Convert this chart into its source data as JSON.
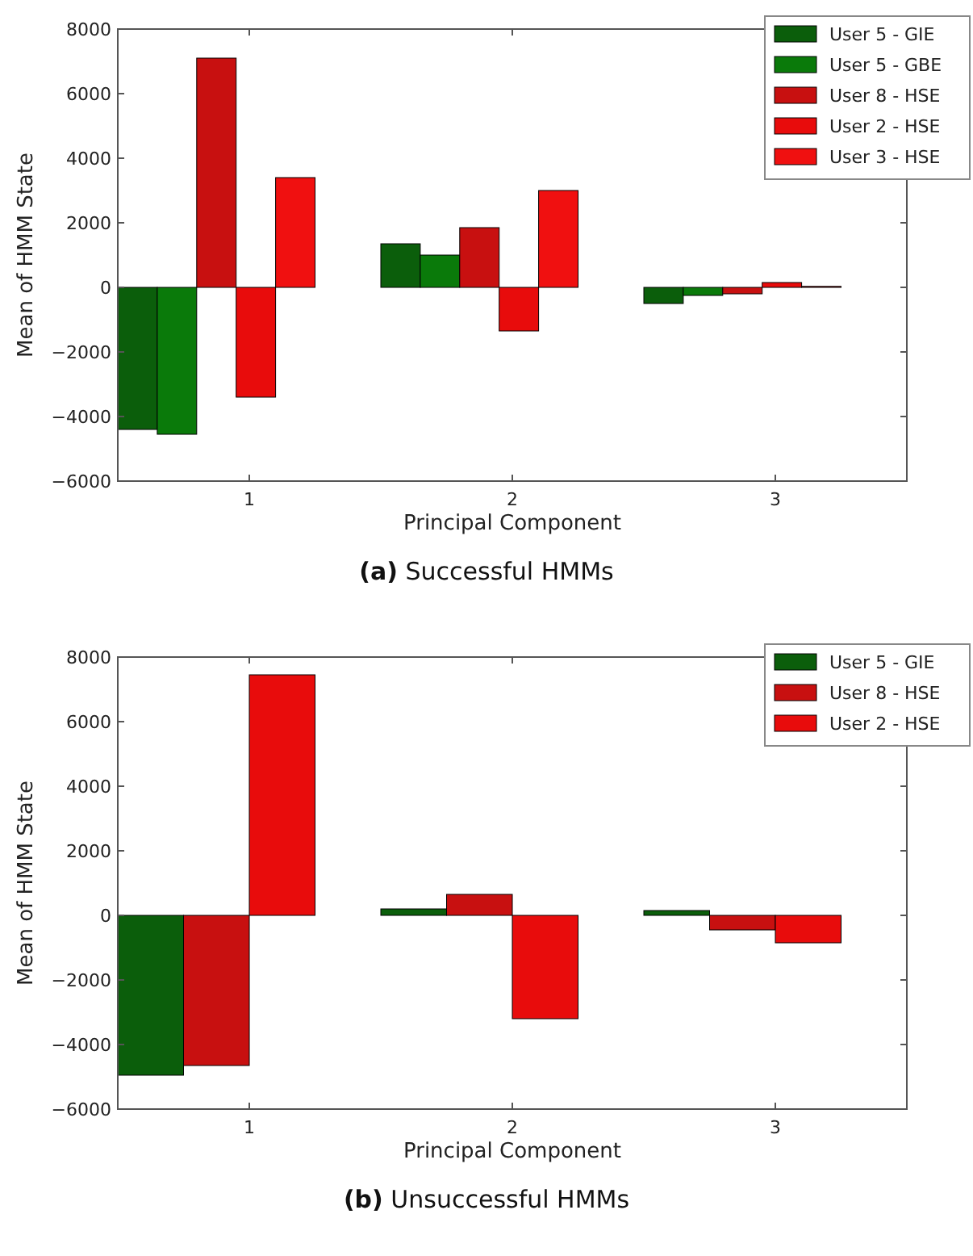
{
  "chart_data": [
    {
      "type": "bar",
      "title": "(a) Successful HMMs",
      "xlabel": "Principal Component",
      "ylabel": "Mean of HMM State",
      "categories": [
        "1",
        "2",
        "3"
      ],
      "ylim": [
        -6000,
        8000
      ],
      "yticks": [
        {
          "value": -6000,
          "label": "−6000"
        },
        {
          "value": -4000,
          "label": "−4000"
        },
        {
          "value": -2000,
          "label": "−2000"
        },
        0,
        2000,
        4000,
        6000,
        8000
      ],
      "grid": false,
      "legend": "top right",
      "series": [
        {
          "name": "User 5 - GIE",
          "color": "#0b5e0b",
          "values": [
            -4400,
            1350,
            -500
          ]
        },
        {
          "name": "User 5 - GBE",
          "color": "#0a7a0a",
          "values": [
            -4550,
            1000,
            -250
          ]
        },
        {
          "name": "User 8 - HSE",
          "color": "#c81010",
          "values": [
            7100,
            1850,
            -200
          ]
        },
        {
          "name": "User 2 - HSE",
          "color": "#e80c0c",
          "values": [
            -3400,
            -1350,
            150
          ]
        },
        {
          "name": "User 3 - HSE",
          "color": "#f01010",
          "values": [
            3400,
            3000,
            30
          ]
        }
      ]
    },
    {
      "type": "bar",
      "title": "(b) Unsuccessful HMMs",
      "xlabel": "Principal Component",
      "ylabel": "Mean of HMM State",
      "categories": [
        "1",
        "2",
        "3"
      ],
      "ylim": [
        -6000,
        8000
      ],
      "yticks": [
        {
          "value": -6000,
          "label": "−6000"
        },
        {
          "value": -4000,
          "label": "−4000"
        },
        {
          "value": -2000,
          "label": "−2000"
        },
        0,
        2000,
        4000,
        6000,
        8000
      ],
      "grid": false,
      "legend": "top right",
      "series": [
        {
          "name": "User 5 - GIE",
          "color": "#0b5e0b",
          "values": [
            -4950,
            200,
            150
          ]
        },
        {
          "name": "User 8 - HSE",
          "color": "#c81010",
          "values": [
            -4650,
            650,
            -450
          ]
        },
        {
          "name": "User 2 - HSE",
          "color": "#e80c0c",
          "values": [
            7450,
            -3200,
            -850
          ]
        }
      ]
    }
  ]
}
